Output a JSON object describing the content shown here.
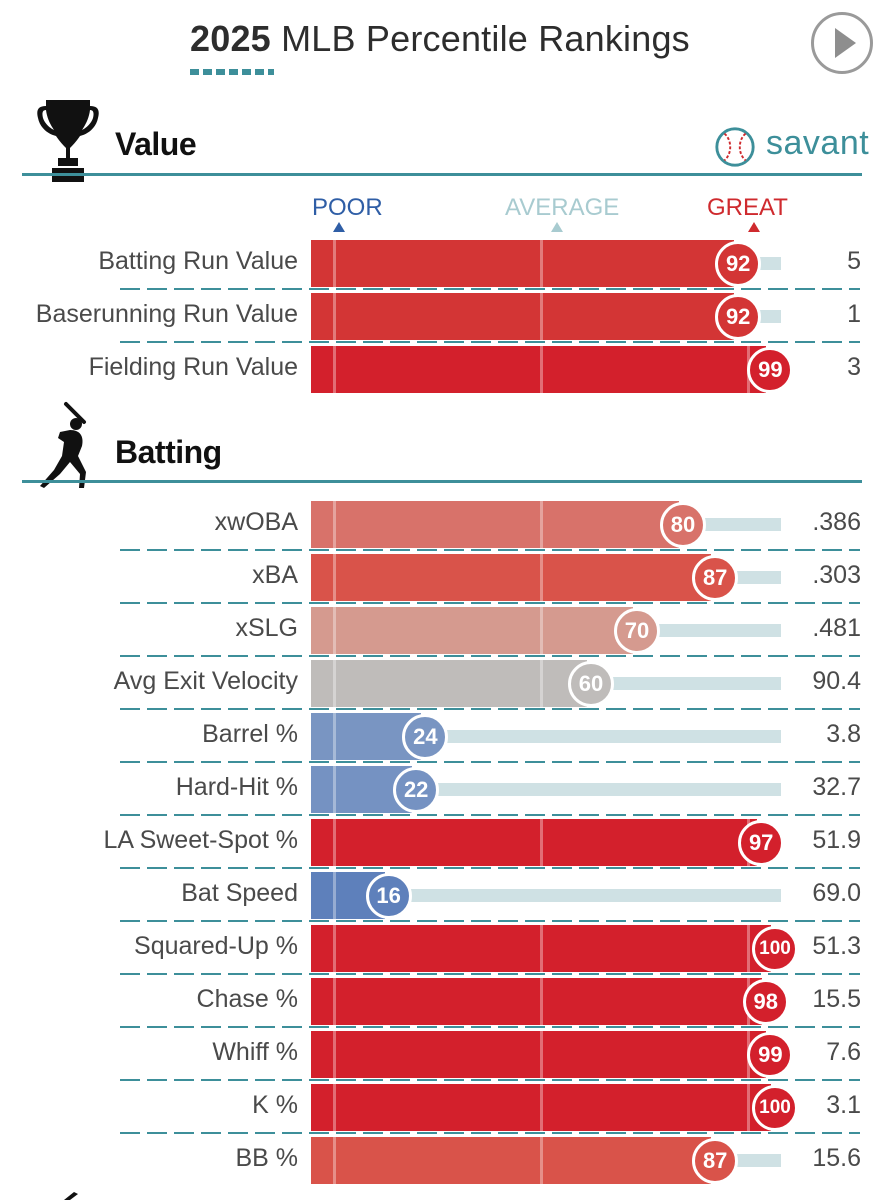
{
  "header": {
    "year": "2025",
    "title": " MLB Percentile Rankings"
  },
  "brand": {
    "name": "savant"
  },
  "colors": {
    "accent": "#3d8f9a",
    "poor": "#2f5ea6",
    "average": "#a8cbd0",
    "great": "#cf2a2e"
  },
  "scale": {
    "poor": "POOR",
    "average": "AVERAGE",
    "great": "GREAT"
  },
  "sections": [
    {
      "id": "value",
      "title": "Value",
      "icon": "trophy-icon",
      "metrics": [
        {
          "label": "Batting Run Value",
          "percentile": 92,
          "value": "5",
          "color": "#d33535"
        },
        {
          "label": "Baserunning Run Value",
          "percentile": 92,
          "value": "1",
          "color": "#d33535"
        },
        {
          "label": "Fielding Run Value",
          "percentile": 99,
          "value": "3",
          "color": "#d3202c"
        }
      ]
    },
    {
      "id": "batting",
      "title": "Batting",
      "icon": "batter-icon",
      "metrics": [
        {
          "label": "xwOBA",
          "percentile": 80,
          "value": ".386",
          "color": "#d8726a"
        },
        {
          "label": "xBA",
          "percentile": 87,
          "value": ".303",
          "color": "#d9534a"
        },
        {
          "label": "xSLG",
          "percentile": 70,
          "value": ".481",
          "color": "#d59a8f"
        },
        {
          "label": "Avg Exit Velocity",
          "percentile": 60,
          "value": "90.4",
          "color": "#bfbcba"
        },
        {
          "label": "Barrel %",
          "percentile": 24,
          "value": "3.8",
          "color": "#7995c2"
        },
        {
          "label": "Hard-Hit %",
          "percentile": 22,
          "value": "32.7",
          "color": "#7592c2"
        },
        {
          "label": "LA Sweet-Spot %",
          "percentile": 97,
          "value": "51.9",
          "color": "#d3202c"
        },
        {
          "label": "Bat Speed",
          "percentile": 16,
          "value": "69.0",
          "color": "#5e80bb"
        },
        {
          "label": "Squared-Up %",
          "percentile": 100,
          "value": "51.3",
          "color": "#d3202c"
        },
        {
          "label": "Chase %",
          "percentile": 98,
          "value": "15.5",
          "color": "#d3202c"
        },
        {
          "label": "Whiff %",
          "percentile": 99,
          "value": "7.6",
          "color": "#d3202c"
        },
        {
          "label": "K %",
          "percentile": 100,
          "value": "3.1",
          "color": "#d3202c"
        },
        {
          "label": "BB %",
          "percentile": 87,
          "value": "15.6",
          "color": "#d9534a"
        }
      ]
    }
  ]
}
